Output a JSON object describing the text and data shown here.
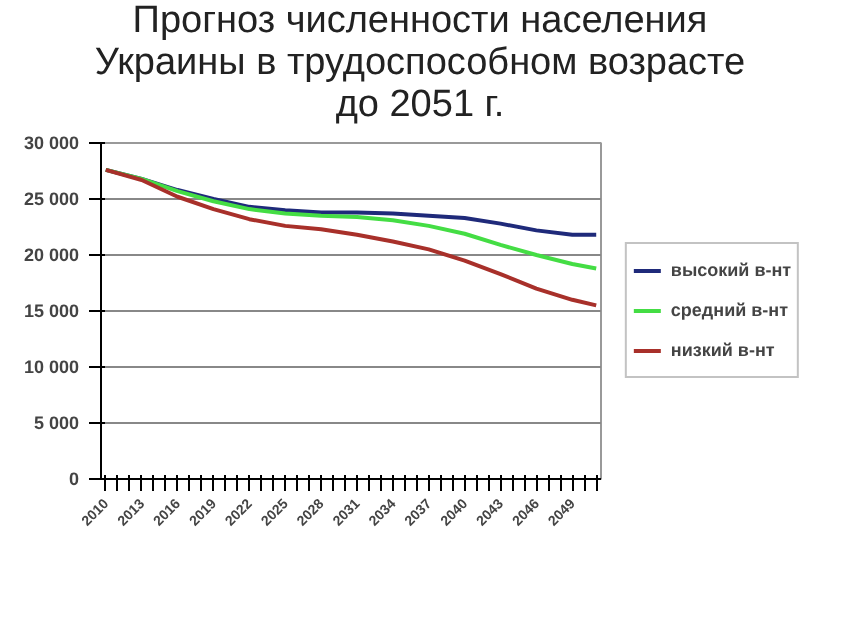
{
  "chart_data": {
    "type": "line",
    "title": "Прогноз численности населения\nУкраины в трудоспособном возрасте\nдо 2051 г.",
    "xlim": [
      2009.6,
      2051.4
    ],
    "xticks": [
      2010,
      {
        "value": 2011,
        "label": null
      },
      {
        "value": 2012,
        "label": null
      },
      2013,
      {
        "value": 2014,
        "label": null
      },
      {
        "value": 2015,
        "label": null
      },
      2016,
      {
        "value": 2017,
        "label": null
      },
      {
        "value": 2018,
        "label": null
      },
      2019,
      {
        "value": 2020,
        "label": null
      },
      {
        "value": 2021,
        "label": null
      },
      2022,
      {
        "value": 2023,
        "label": null
      },
      {
        "value": 2024,
        "label": null
      },
      2025,
      {
        "value": 2026,
        "label": null
      },
      {
        "value": 2027,
        "label": null
      },
      2028,
      {
        "value": 2029,
        "label": null
      },
      {
        "value": 2030,
        "label": null
      },
      2031,
      {
        "value": 2032,
        "label": null
      },
      {
        "value": 2033,
        "label": null
      },
      2034,
      {
        "value": 2035,
        "label": null
      },
      {
        "value": 2036,
        "label": null
      },
      2037,
      {
        "value": 2038,
        "label": null
      },
      {
        "value": 2039,
        "label": null
      },
      2040,
      {
        "value": 2041,
        "label": null
      },
      {
        "value": 2042,
        "label": null
      },
      2043,
      {
        "value": 2044,
        "label": null
      },
      {
        "value": 2045,
        "label": null
      },
      2046,
      {
        "value": 2047,
        "label": null
      },
      {
        "value": 2048,
        "label": null
      },
      2049,
      {
        "value": 2050,
        "label": null
      },
      {
        "value": 2051,
        "label": null
      }
    ],
    "ylim": [
      0,
      30000
    ],
    "yticks": [
      0,
      {
        "value": 5000,
        "label": "5 000"
      },
      {
        "value": 10000,
        "label": "10 000"
      },
      {
        "value": 15000,
        "label": "15 000"
      },
      {
        "value": 20000,
        "label": "20 000"
      },
      {
        "value": 25000,
        "label": "25 000"
      },
      {
        "value": 30000,
        "label": "30 000"
      }
    ],
    "x": [
      2010,
      2013,
      2016,
      2019,
      2022,
      2025,
      2028,
      2031,
      2034,
      2037,
      2040,
      2043,
      2046,
      2049,
      2051
    ],
    "series": [
      {
        "name": "высокий в-нт",
        "color": "#1f2a7a",
        "values": [
          27600,
          26800,
          25800,
          25000,
          24300,
          24000,
          23800,
          23800,
          23700,
          23500,
          23300,
          22800,
          22200,
          21800,
          21800
        ]
      },
      {
        "name": "средний в-нт",
        "color": "#44dd44",
        "values": [
          27600,
          26800,
          25700,
          24800,
          24100,
          23700,
          23500,
          23400,
          23100,
          22600,
          21900,
          20900,
          20000,
          19200,
          18800
        ]
      },
      {
        "name": "низкий в-нт",
        "color": "#a8302a",
        "values": [
          27600,
          26700,
          25200,
          24100,
          23200,
          22600,
          22300,
          21800,
          21200,
          20500,
          19500,
          18300,
          17000,
          16000,
          15500
        ]
      }
    ],
    "grid": "y",
    "legend": "right"
  }
}
